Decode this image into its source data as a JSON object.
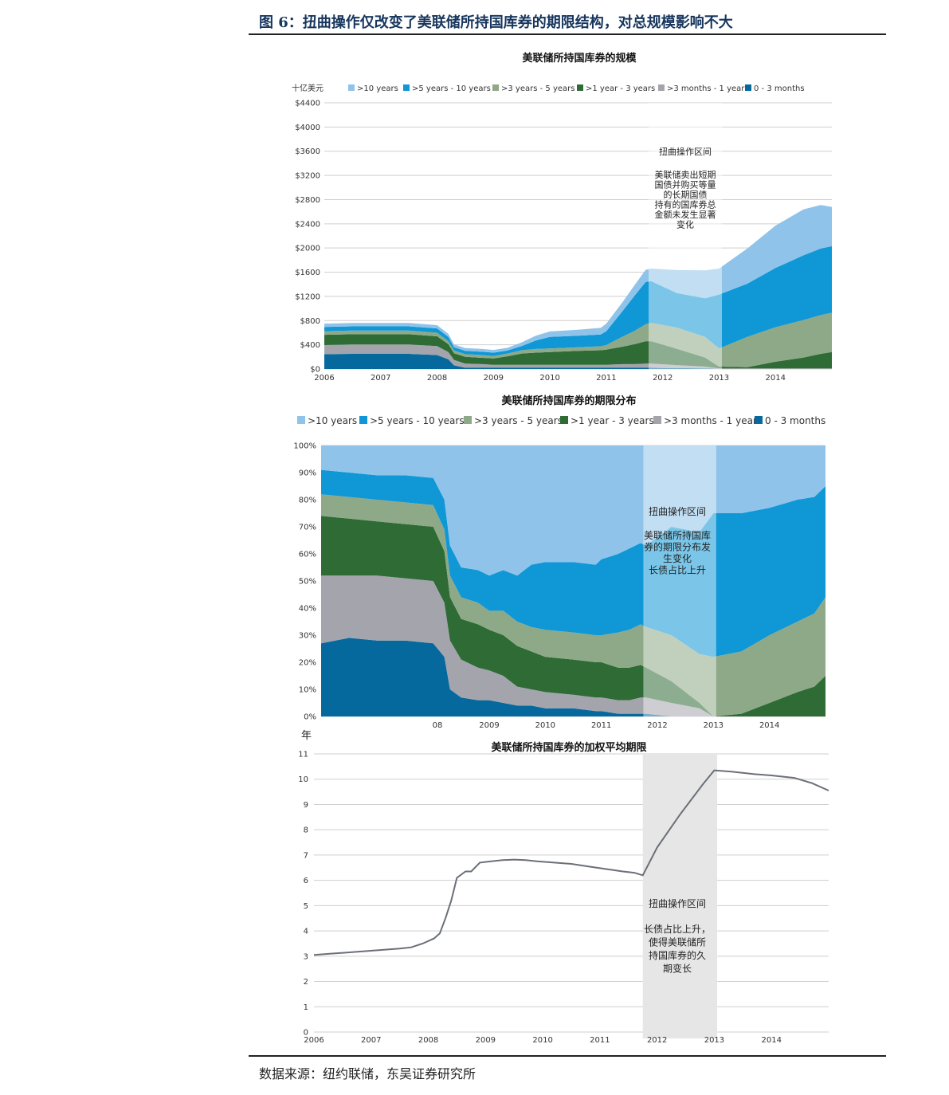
{
  "figure": {
    "title": "图 6：扭曲操作仅改变了美联储所持国库券的期限结构，对总规模影响不大",
    "source": "数据来源：纽约联储，东吴证券研究所"
  },
  "colors": {
    "gt10": "#8fc3ea",
    "y5_10": "#0f97d6",
    "y3_5": "#8ea987",
    "y1_3": "#2e6b35",
    "m3_1y": "#a4a4ad",
    "m0_3": "#05699e",
    "band": "#dcdcdc",
    "line": "#6b6f78",
    "grid": "#cfcfcf"
  },
  "legend_keys": [
    "gt10",
    "y5_10",
    "y3_5",
    "y1_3",
    "m3_1y",
    "m0_3"
  ],
  "chart_data": [
    {
      "type": "area",
      "title": "美联储所持国库券的规模",
      "ylabel": "十亿美元",
      "legend": [
        ">10 years",
        ">5 years - 10 years",
        ">3 years - 5 years",
        ">1 year - 3 years",
        ">3 months - 1 year",
        "0 - 3 months"
      ],
      "y_ticks": [
        "$0",
        "$400",
        "$800",
        "$1200",
        "$1600",
        "$2000",
        "$2400",
        "$2800",
        "$3200",
        "$3600",
        "$4000",
        "$4400"
      ],
      "x_ticks": [
        "2006",
        "2007",
        "2008",
        "2009",
        "2010",
        "2011",
        "2012",
        "2013",
        "2014"
      ],
      "ylim": [
        0,
        4400
      ],
      "xlim": [
        2006,
        2015
      ],
      "x": [
        2006,
        2006.5,
        2007,
        2007.5,
        2008,
        2008.2,
        2008.3,
        2008.5,
        2008.8,
        2009,
        2009.25,
        2009.5,
        2009.75,
        2010,
        2010.5,
        2010.9,
        2011.0,
        2011.3,
        2011.5,
        2011.7,
        2011.8,
        2012.25,
        2012.75,
        2013.0,
        2013.5,
        2014.0,
        2014.5,
        2014.8,
        2015.0
      ],
      "series": [
        {
          "key": "m0_3",
          "name": "0 - 3 months",
          "values": [
            245,
            250,
            250,
            250,
            230,
            160,
            60,
            20,
            20,
            20,
            20,
            20,
            20,
            20,
            20,
            20,
            20,
            20,
            20,
            20,
            20,
            15,
            10,
            0,
            0,
            0,
            0,
            0,
            0
          ]
        },
        {
          "key": "m3_1y",
          "name": ">3 months - 1 year",
          "values": [
            150,
            155,
            155,
            155,
            150,
            120,
            90,
            70,
            60,
            50,
            50,
            50,
            50,
            50,
            50,
            50,
            50,
            60,
            60,
            70,
            70,
            50,
            30,
            10,
            10,
            10,
            10,
            10,
            10
          ]
        },
        {
          "key": "y1_3",
          "name": ">1 year - 3 years",
          "values": [
            170,
            170,
            170,
            170,
            160,
            130,
            110,
            110,
            105,
            105,
            140,
            185,
            200,
            210,
            230,
            240,
            250,
            290,
            330,
            370,
            370,
            270,
            150,
            30,
            20,
            110,
            180,
            240,
            270
          ]
        },
        {
          "key": "y3_5",
          "name": ">3 years - 5 years",
          "values": [
            60,
            60,
            60,
            60,
            60,
            50,
            45,
            45,
            45,
            40,
            45,
            55,
            60,
            60,
            60,
            65,
            75,
            170,
            220,
            280,
            300,
            350,
            340,
            300,
            500,
            570,
            620,
            640,
            650
          ]
        },
        {
          "key": "y5_10",
          "name": ">5 years - 10 years",
          "values": [
            70,
            70,
            70,
            70,
            70,
            70,
            55,
            55,
            55,
            55,
            50,
            70,
            140,
            190,
            190,
            195,
            230,
            430,
            580,
            700,
            690,
            570,
            640,
            890,
            880,
            980,
            1070,
            1100,
            1100
          ]
        },
        {
          "key": "gt10",
          "name": ">10 years",
          "values": [
            55,
            55,
            55,
            55,
            55,
            50,
            45,
            45,
            45,
            45,
            45,
            60,
            80,
            90,
            100,
            110,
            125,
            150,
            175,
            200,
            210,
            380,
            460,
            430,
            580,
            700,
            760,
            720,
            650
          ]
        }
      ],
      "annotation": {
        "title": "扭曲操作区间",
        "lines": [
          "美联储卖出短期",
          "国债并购买等量",
          "的长期国债",
          "持有的国库券总",
          "金额未发生显著",
          "变化"
        ]
      },
      "band": [
        2011.75,
        2013.05
      ]
    },
    {
      "type": "area",
      "title": "美联储所持国库券的期限分布",
      "legend": [
        ">10 years",
        ">5 years - 10 years",
        ">3 years - 5 years",
        ">1 year - 3 years",
        ">3 months - 1 year",
        "0 - 3 months"
      ],
      "y_ticks": [
        "0%",
        "10%",
        "20%",
        "30%",
        "40%",
        "50%",
        "60%",
        "70%",
        "80%",
        "90%",
        "100%"
      ],
      "x_ticks": [
        "08",
        "2009",
        "2010",
        "2011",
        "2012",
        "2013",
        "2014"
      ],
      "ylim": [
        0,
        100
      ],
      "xlim": [
        2006,
        2015
      ],
      "x": [
        2006,
        2006.5,
        2007,
        2007.5,
        2008,
        2008.2,
        2008.3,
        2008.5,
        2008.8,
        2009,
        2009.25,
        2009.5,
        2009.75,
        2010,
        2010.5,
        2010.9,
        2011.0,
        2011.3,
        2011.5,
        2011.7,
        2011.8,
        2012.25,
        2012.75,
        2013.0,
        2013.5,
        2014.0,
        2014.5,
        2014.8,
        2015.0
      ],
      "series": [
        {
          "key": "m0_3",
          "name": "0 - 3 months",
          "values": [
            27,
            29,
            28,
            28,
            27,
            22,
            10,
            7,
            6,
            6,
            5,
            4,
            4,
            3,
            3,
            2,
            2,
            1,
            1,
            1,
            1,
            0,
            0,
            0,
            0,
            0,
            0,
            0,
            0
          ]
        },
        {
          "key": "m3_1y",
          "name": ">3 months - 1 year",
          "values": [
            25,
            23,
            24,
            23,
            23,
            20,
            18,
            14,
            12,
            11,
            10,
            7,
            6,
            6,
            5,
            5,
            5,
            5,
            5,
            6,
            6,
            5,
            3,
            0,
            0,
            0,
            0,
            0,
            0
          ]
        },
        {
          "key": "y1_3",
          "name": ">1 year - 3 years",
          "values": [
            22,
            21,
            20,
            20,
            20,
            19,
            16,
            15,
            16,
            15,
            15,
            15,
            14,
            13,
            13,
            13,
            13,
            12,
            12,
            12,
            11,
            8,
            2,
            0,
            1,
            5,
            9,
            11,
            15
          ]
        },
        {
          "key": "y3_5",
          "name": ">3 years - 5 years",
          "values": [
            8,
            8,
            8,
            8,
            8,
            8,
            8,
            8,
            8,
            7,
            9,
            9,
            9,
            10,
            10,
            10,
            10,
            13,
            14,
            15,
            15,
            17,
            18,
            22,
            23,
            25,
            26,
            27,
            29
          ]
        },
        {
          "key": "y5_10",
          "name": ">5 years - 10 years",
          "values": [
            9,
            9,
            9,
            10,
            10,
            11,
            11,
            11,
            12,
            13,
            15,
            17,
            23,
            25,
            26,
            26,
            28,
            29,
            30,
            30,
            30,
            40,
            45,
            53,
            51,
            47,
            45,
            43,
            41
          ]
        },
        {
          "key": "gt10",
          "name": ">10 years",
          "values": [
            9,
            10,
            11,
            11,
            12,
            20,
            37,
            45,
            46,
            48,
            46,
            48,
            44,
            43,
            43,
            44,
            42,
            40,
            38,
            36,
            37,
            30,
            32,
            25,
            25,
            23,
            20,
            19,
            15
          ]
        }
      ],
      "annotation": {
        "title": "扭曲操作区间",
        "lines": [
          "美联储所持国库",
          "券的期限分布发",
          "生变化",
          "长债占比上升"
        ]
      },
      "band": [
        2011.75,
        2013.05
      ]
    },
    {
      "type": "line",
      "title": "美联储所持国库券的加权平均期限",
      "ylabel": "年",
      "y_ticks": [
        "0",
        "1",
        "2",
        "3",
        "4",
        "5",
        "6",
        "7",
        "8",
        "9",
        "10",
        "11"
      ],
      "x_ticks": [
        "2006",
        "2007",
        "2008",
        "2009",
        "2010",
        "2011",
        "2012",
        "2013",
        "2014"
      ],
      "ylim": [
        0,
        11
      ],
      "xlim": [
        2006,
        2015
      ],
      "x": [
        2006,
        2006.3,
        2006.6,
        2006.9,
        2007.2,
        2007.5,
        2007.7,
        2007.9,
        2008.1,
        2008.2,
        2008.25,
        2008.3,
        2008.4,
        2008.5,
        2008.65,
        2008.75,
        2008.9,
        2009.1,
        2009.3,
        2009.5,
        2009.7,
        2009.9,
        2010.2,
        2010.5,
        2010.8,
        2011.1,
        2011.4,
        2011.6,
        2011.75,
        2012.0,
        2012.4,
        2012.8,
        2013.0,
        2013.3,
        2013.7,
        2014.0,
        2014.4,
        2014.7,
        2015.0
      ],
      "values": [
        3.05,
        3.1,
        3.15,
        3.2,
        3.25,
        3.3,
        3.35,
        3.5,
        3.7,
        3.9,
        4.2,
        4.5,
        5.2,
        6.1,
        6.35,
        6.35,
        6.7,
        6.75,
        6.8,
        6.82,
        6.8,
        6.75,
        6.7,
        6.65,
        6.55,
        6.45,
        6.35,
        6.3,
        6.2,
        7.3,
        8.6,
        9.8,
        10.35,
        10.3,
        10.2,
        10.15,
        10.05,
        9.85,
        9.55
      ],
      "annotation": {
        "title": "扭曲操作区间",
        "lines": [
          "长债占比上升，",
          "使得美联储所",
          "持国库券的久",
          "期变长"
        ]
      },
      "band": [
        2011.75,
        2013.05
      ]
    }
  ]
}
